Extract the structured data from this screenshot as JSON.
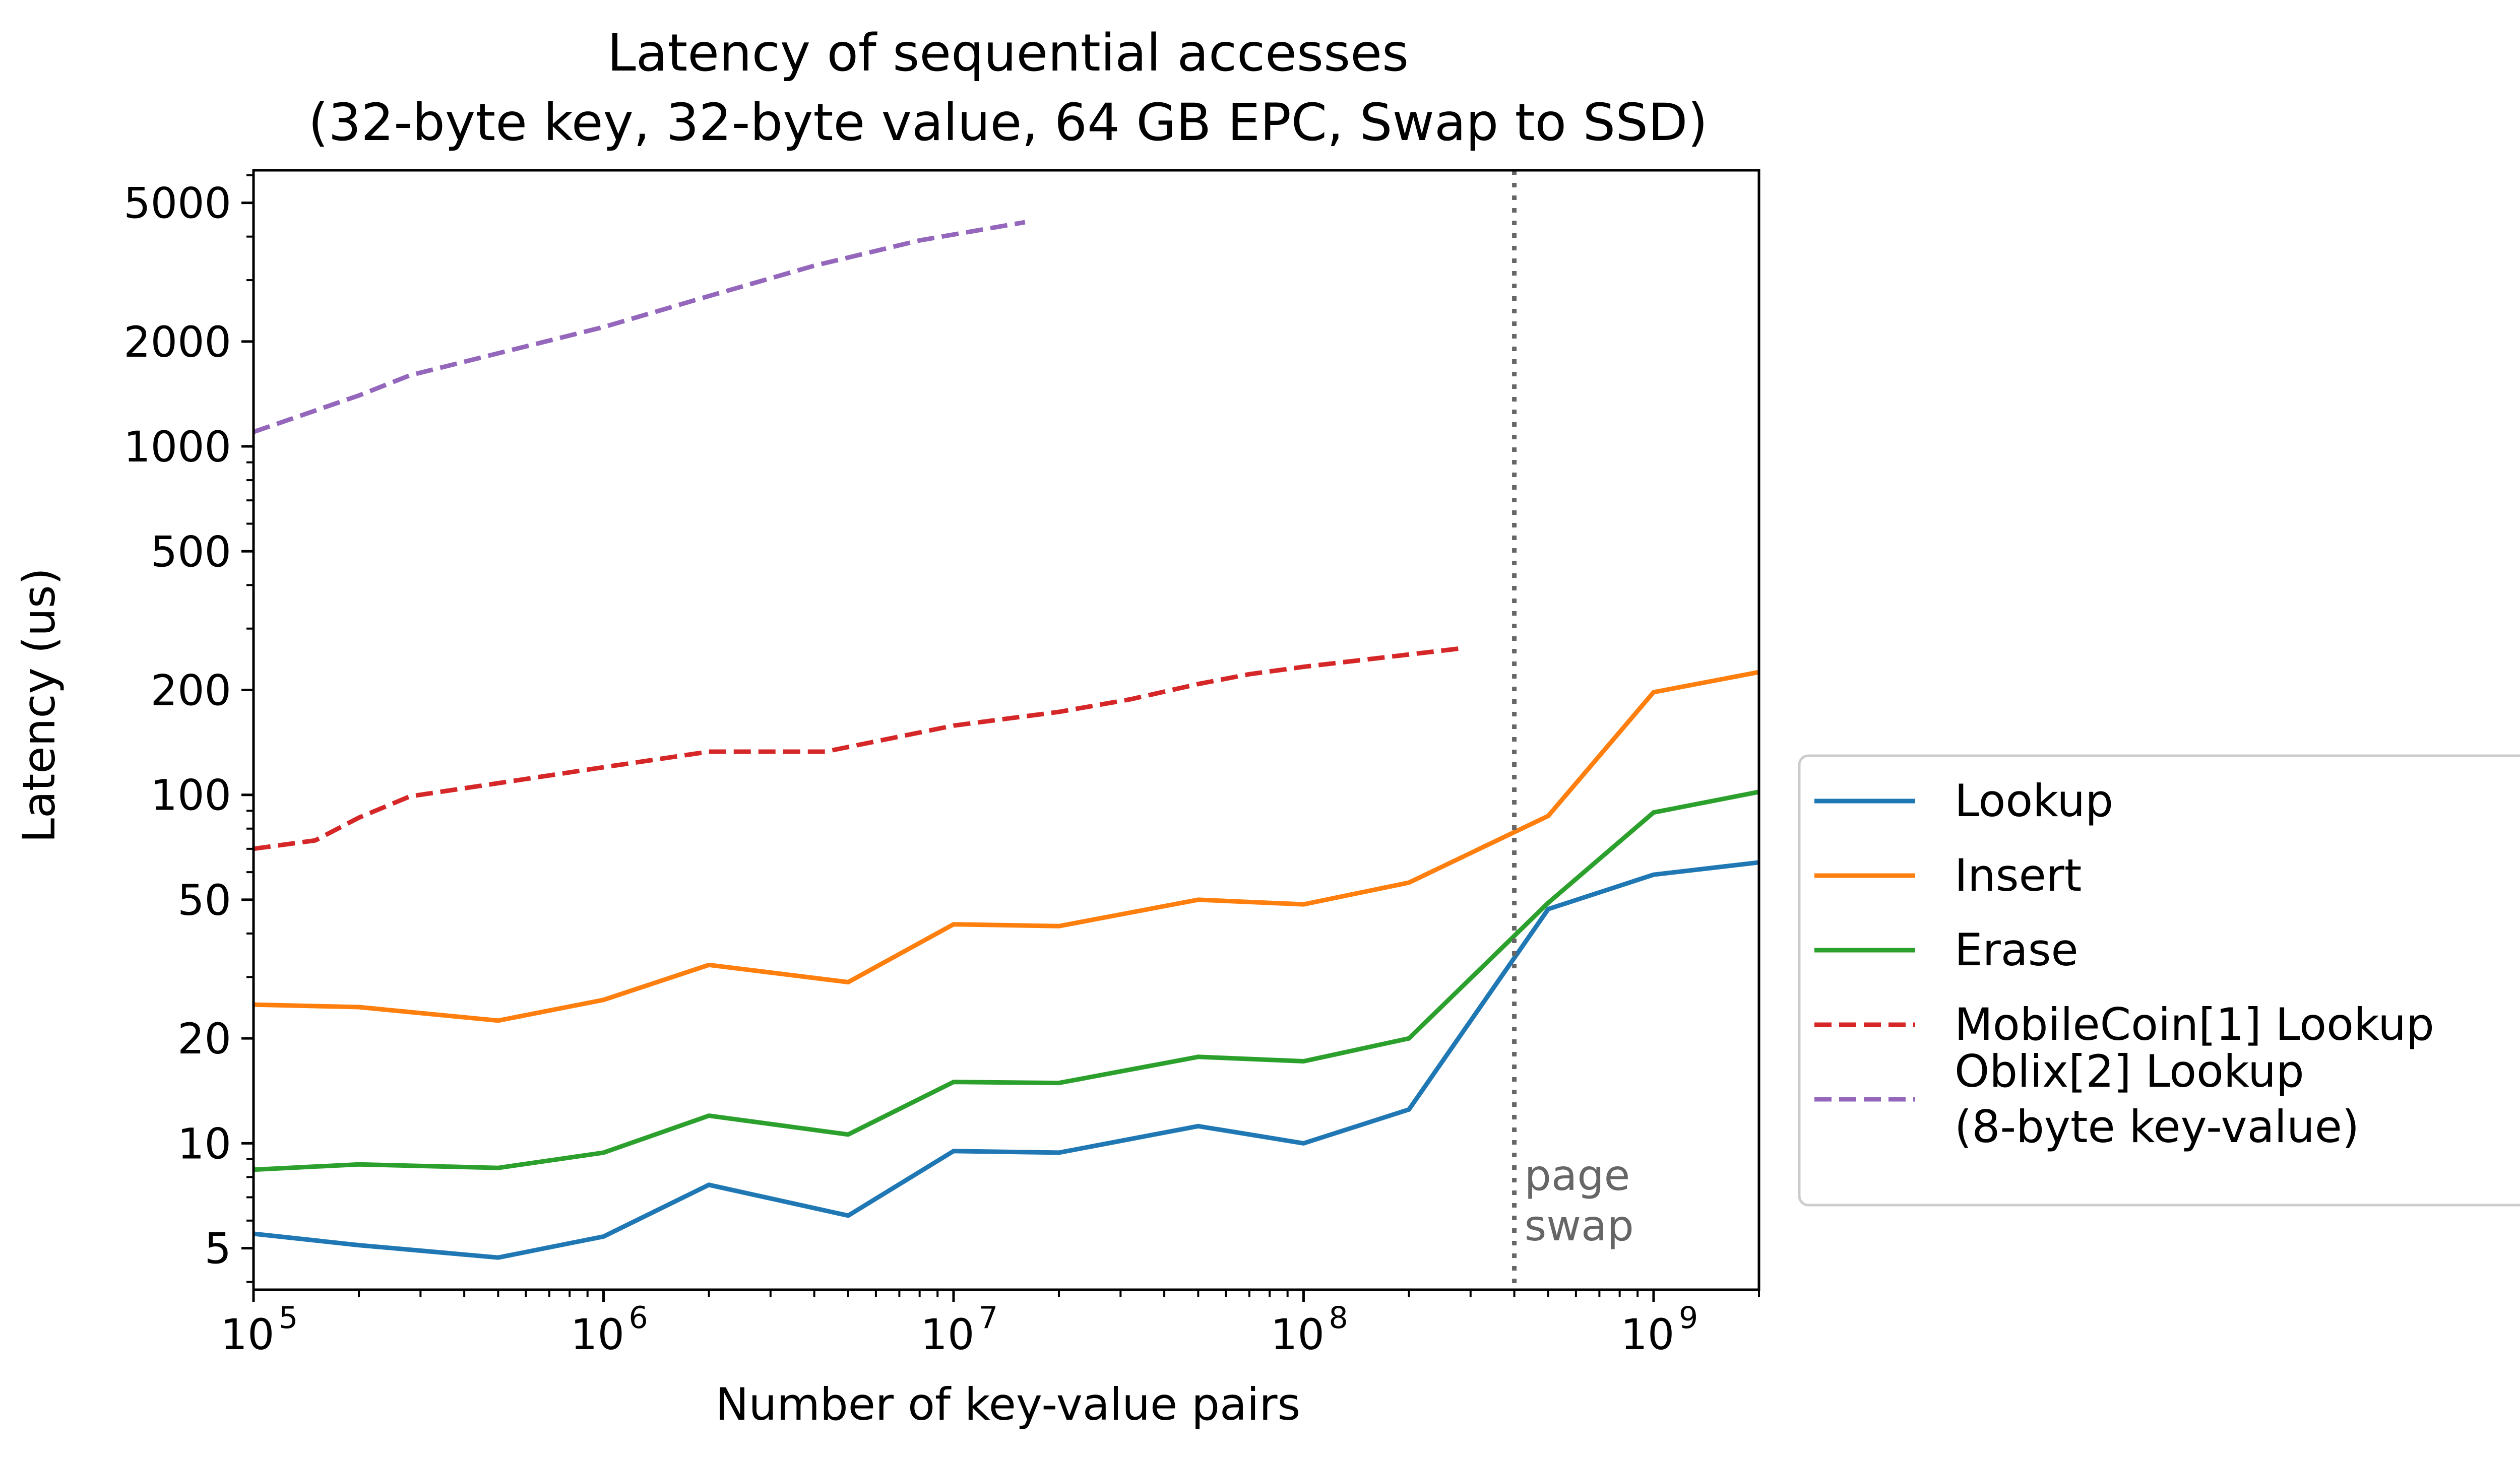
{
  "chart_data": {
    "type": "line",
    "title": [
      "Latency of sequential accesses",
      "(32-byte key, 32-byte value, 64 GB EPC, Swap to SSD)"
    ],
    "xlabel": "Number of key-value pairs",
    "ylabel": "Latency (us)",
    "xscale": "log",
    "yscale": "log",
    "xlim": [
      100000,
      2000000000
    ],
    "ylim": [
      3.8,
      6200
    ],
    "x_ticks": [
      {
        "value": 100000,
        "base": "10",
        "exp": "5"
      },
      {
        "value": 1000000,
        "base": "10",
        "exp": "6"
      },
      {
        "value": 10000000,
        "base": "10",
        "exp": "7"
      },
      {
        "value": 100000000,
        "base": "10",
        "exp": "8"
      },
      {
        "value": 1000000000,
        "base": "10",
        "exp": "9"
      }
    ],
    "y_ticks": [
      5,
      10,
      20,
      50,
      100,
      200,
      500,
      1000,
      2000,
      5000
    ],
    "y_tick_labels": [
      "5",
      "10",
      "20",
      "50",
      "100",
      "200",
      "500",
      "1000",
      "2000",
      "5000"
    ],
    "legend_position": "center-right outside",
    "grid": false,
    "series": [
      {
        "name": "Lookup",
        "color": "#1f77b4",
        "dash": "solid",
        "x": [
          100000,
          200000,
          500000,
          1000000,
          2000000,
          5000000,
          10000000,
          20000000,
          50000000,
          100000000,
          200000000,
          500000000,
          1000000000,
          2000000000
        ],
        "y": [
          5.5,
          5.1,
          4.7,
          5.4,
          7.6,
          6.2,
          9.5,
          9.4,
          11.2,
          10.0,
          12.5,
          47,
          59,
          64
        ]
      },
      {
        "name": "Insert",
        "color": "#ff7f0e",
        "dash": "solid",
        "x": [
          100000,
          200000,
          500000,
          1000000,
          2000000,
          5000000,
          10000000,
          20000000,
          50000000,
          100000000,
          200000000,
          500000000,
          1000000000,
          2000000000
        ],
        "y": [
          25,
          24.6,
          22.5,
          25.8,
          32.5,
          29,
          42.5,
          42,
          50,
          48.5,
          56,
          87,
          197,
          225
        ]
      },
      {
        "name": "Erase",
        "color": "#2ca02c",
        "dash": "solid",
        "x": [
          100000,
          200000,
          500000,
          1000000,
          2000000,
          5000000,
          10000000,
          20000000,
          50000000,
          100000000,
          200000000,
          500000000,
          1000000000,
          2000000000
        ],
        "y": [
          8.4,
          8.7,
          8.5,
          9.4,
          12,
          10.6,
          15.0,
          14.9,
          17.7,
          17.2,
          20,
          49,
          89,
          102
        ]
      },
      {
        "name": "MobileCoin[1] Lookup",
        "color": "#d62728",
        "dash": "dashed",
        "x": [
          100000,
          150000,
          200000,
          280000,
          500000,
          1000000,
          2000000,
          4300000,
          10000000,
          20000000,
          32000000,
          50000000,
          70000000,
          100000000,
          170000000,
          280000000
        ],
        "y": [
          70,
          74,
          86,
          99,
          108,
          120,
          133,
          133,
          158,
          173,
          188,
          208,
          222,
          233,
          248,
          263
        ]
      },
      {
        "name": "Oblix[2] Lookup\n(8-byte key-value)",
        "color": "#9467bd",
        "dash": "dashed",
        "x": [
          100000,
          200000,
          280000,
          500000,
          1000000,
          2000000,
          4000000,
          8000000,
          16000000
        ],
        "y": [
          1100,
          1400,
          1600,
          1850,
          2200,
          2700,
          3300,
          3900,
          4400
        ]
      }
    ],
    "annotations": [
      {
        "text": "page\nswap",
        "vline_x": 400000000,
        "style": "dotted",
        "color": "#666666"
      }
    ]
  }
}
